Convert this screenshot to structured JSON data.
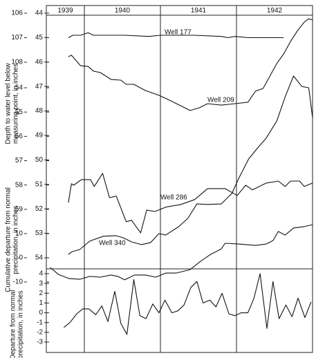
{
  "chart_data": {
    "type": "line",
    "categories": [
      "1939",
      "1940",
      "1941",
      "1942"
    ],
    "xlim": [
      1939.5,
      1943.0
    ],
    "xticks": [
      1940,
      1941,
      1942
    ],
    "y_titles": [
      [
        "Depth to water level below",
        "measuring point, in inches"
      ],
      [
        "Cumulative departure from normal",
        "precipitation, in inches"
      ],
      [
        "Departure from normal",
        "precipitation, in inches"
      ]
    ],
    "axes": [
      {
        "ylim": [
          106,
          108
        ],
        "yticks": [
          106,
          107,
          108
        ]
      },
      {
        "ylim": [
          44,
          54
        ],
        "yticks": [
          44,
          45,
          46,
          47,
          48,
          49,
          50,
          51,
          52,
          53,
          54
        ]
      },
      {
        "ylim": [
          54,
          60
        ],
        "yticks": [
          54,
          55,
          56,
          57,
          58,
          59
        ]
      },
      {
        "ylim": [
          14,
          -10
        ],
        "yticks": [
          10,
          0,
          -10
        ]
      },
      {
        "ylim": [
          4,
          -3
        ],
        "yticks": [
          4,
          3,
          2,
          1,
          0,
          -1,
          -2,
          -3
        ]
      }
    ],
    "series": [
      {
        "name": "Well 177",
        "color": "#111111",
        "axis": 0,
        "x": [
          1939.79,
          1939.85,
          1939.95,
          1940.05,
          1940.12,
          1940.53,
          1940.85,
          1941.0,
          1941.44,
          1941.8,
          1941.89,
          1941.98,
          1942.16,
          1942.35,
          1942.62
        ],
        "values": [
          107.0,
          106.9,
          106.9,
          106.8,
          106.9,
          106.9,
          106.95,
          106.9,
          106.9,
          106.95,
          107.0,
          106.95,
          107.0,
          107.0,
          107.0
        ]
      },
      {
        "name": "Well 209",
        "color": "#111111",
        "axis": 1,
        "x": [
          1939.79,
          1939.83,
          1939.95,
          1940.05,
          1940.12,
          1940.21,
          1940.35,
          1940.48,
          1940.55,
          1940.65,
          1940.8,
          1940.98,
          1941.12,
          1941.3,
          1941.39,
          1941.51,
          1941.62,
          1941.8,
          1941.98,
          1942.15,
          1942.25,
          1942.35,
          1942.44,
          1942.53,
          1942.62,
          1942.71,
          1942.8,
          1942.89,
          1942.95,
          1943.0
        ],
        "values": [
          45.78,
          45.72,
          46.15,
          46.18,
          46.37,
          46.43,
          46.71,
          46.74,
          46.91,
          46.91,
          47.16,
          47.36,
          47.56,
          47.84,
          47.98,
          47.87,
          47.7,
          47.76,
          47.7,
          47.64,
          47.19,
          47.08,
          46.57,
          46.06,
          45.67,
          45.16,
          44.73,
          44.37,
          44.23,
          44.28
        ]
      },
      {
        "name": "Well 286",
        "color": "#111111",
        "axis": 2,
        "x": [
          1939.79,
          1939.83,
          1939.86,
          1939.96,
          1940.08,
          1940.13,
          1940.24,
          1940.33,
          1940.42,
          1940.55,
          1940.62,
          1940.74,
          1940.82,
          1940.93,
          1941.07,
          1941.27,
          1941.45,
          1941.62,
          1941.85,
          1942.01,
          1942.12,
          1942.21,
          1942.39,
          1942.55,
          1942.64,
          1942.71,
          1942.83,
          1942.89,
          1943.0
        ],
        "values": [
          58.72,
          57.95,
          58.01,
          57.78,
          57.78,
          58.06,
          57.52,
          58.52,
          58.46,
          59.51,
          59.45,
          59.97,
          59.03,
          59.09,
          58.91,
          58.8,
          58.6,
          58.15,
          58.15,
          58.43,
          58.01,
          58.2,
          57.92,
          57.84,
          58.06,
          57.84,
          57.84,
          58.06,
          57.92
        ]
      },
      {
        "name": "Well 340",
        "color": "#111111",
        "axis": 1,
        "x": [
          1939.79,
          1939.84,
          1939.94,
          1940.07,
          1940.25,
          1940.42,
          1940.51,
          1940.62,
          1940.75,
          1940.87,
          1940.98,
          1941.07,
          1941.24,
          1941.36,
          1941.48,
          1941.62,
          1941.8,
          1941.94,
          1942.03,
          1942.16,
          1942.27,
          1942.39,
          1942.53,
          1942.64,
          1942.75,
          1942.86,
          1942.95,
          1943.0
        ],
        "values": [
          53.86,
          53.75,
          53.66,
          53.32,
          53.12,
          53.1,
          53.18,
          53.35,
          53.46,
          53.38,
          53.01,
          53.07,
          52.73,
          52.39,
          51.8,
          51.82,
          51.8,
          51.37,
          50.75,
          49.96,
          49.54,
          49.11,
          48.41,
          47.42,
          46.57,
          47.0,
          47.05,
          48.27
        ]
      },
      {
        "color": "#111111",
        "axis": 3,
        "x": [
          1939.55,
          1939.66,
          1939.8,
          1939.94,
          1940.07,
          1940.21,
          1940.35,
          1940.44,
          1940.53,
          1940.66,
          1940.8,
          1940.94,
          1941.07,
          1941.21,
          1941.39,
          1941.53,
          1941.66,
          1941.8,
          1941.85,
          1942.03,
          1942.25,
          1942.39,
          1942.48,
          1942.55,
          1942.64,
          1942.75,
          1942.89,
          1943.0
        ],
        "values": [
          -4.0,
          -6.9,
          -8.6,
          -8.9,
          -7.7,
          -8.0,
          -7.1,
          -7.7,
          -9.1,
          -7.1,
          -7.1,
          -8.0,
          -6.3,
          -6.3,
          -4.9,
          -1.4,
          1.4,
          3.7,
          6.0,
          5.7,
          5.1,
          5.7,
          7.1,
          10.9,
          9.4,
          12.3,
          12.9,
          13.7
        ]
      },
      {
        "color": "#111111",
        "axis": 4,
        "x": [
          1939.73,
          1939.81,
          1939.9,
          1939.98,
          1940.06,
          1940.15,
          1940.23,
          1940.31,
          1940.4,
          1940.48,
          1940.56,
          1940.65,
          1940.73,
          1940.81,
          1940.9,
          1940.98,
          1941.06,
          1941.15,
          1941.23,
          1941.31,
          1941.4,
          1941.48,
          1941.56,
          1941.65,
          1941.73,
          1941.81,
          1941.9,
          1941.98,
          1942.06,
          1942.15,
          1942.23,
          1942.31,
          1942.4,
          1942.48,
          1942.56,
          1942.65,
          1942.73,
          1942.81,
          1942.9,
          1942.98
        ],
        "values": [
          -1.5,
          -1.0,
          -0.1,
          0.4,
          0.4,
          -0.2,
          0.7,
          -0.9,
          2.2,
          -1.1,
          -2.2,
          3.4,
          -0.3,
          -0.6,
          0.9,
          0.0,
          1.3,
          0.0,
          0.2,
          0.8,
          2.6,
          3.2,
          1.0,
          1.3,
          0.6,
          2.0,
          -0.1,
          -0.3,
          0.0,
          0.0,
          1.5,
          4.0,
          -1.6,
          3.2,
          -0.6,
          0.8,
          -0.4,
          1.5,
          -0.5,
          1.1
        ]
      }
    ]
  }
}
